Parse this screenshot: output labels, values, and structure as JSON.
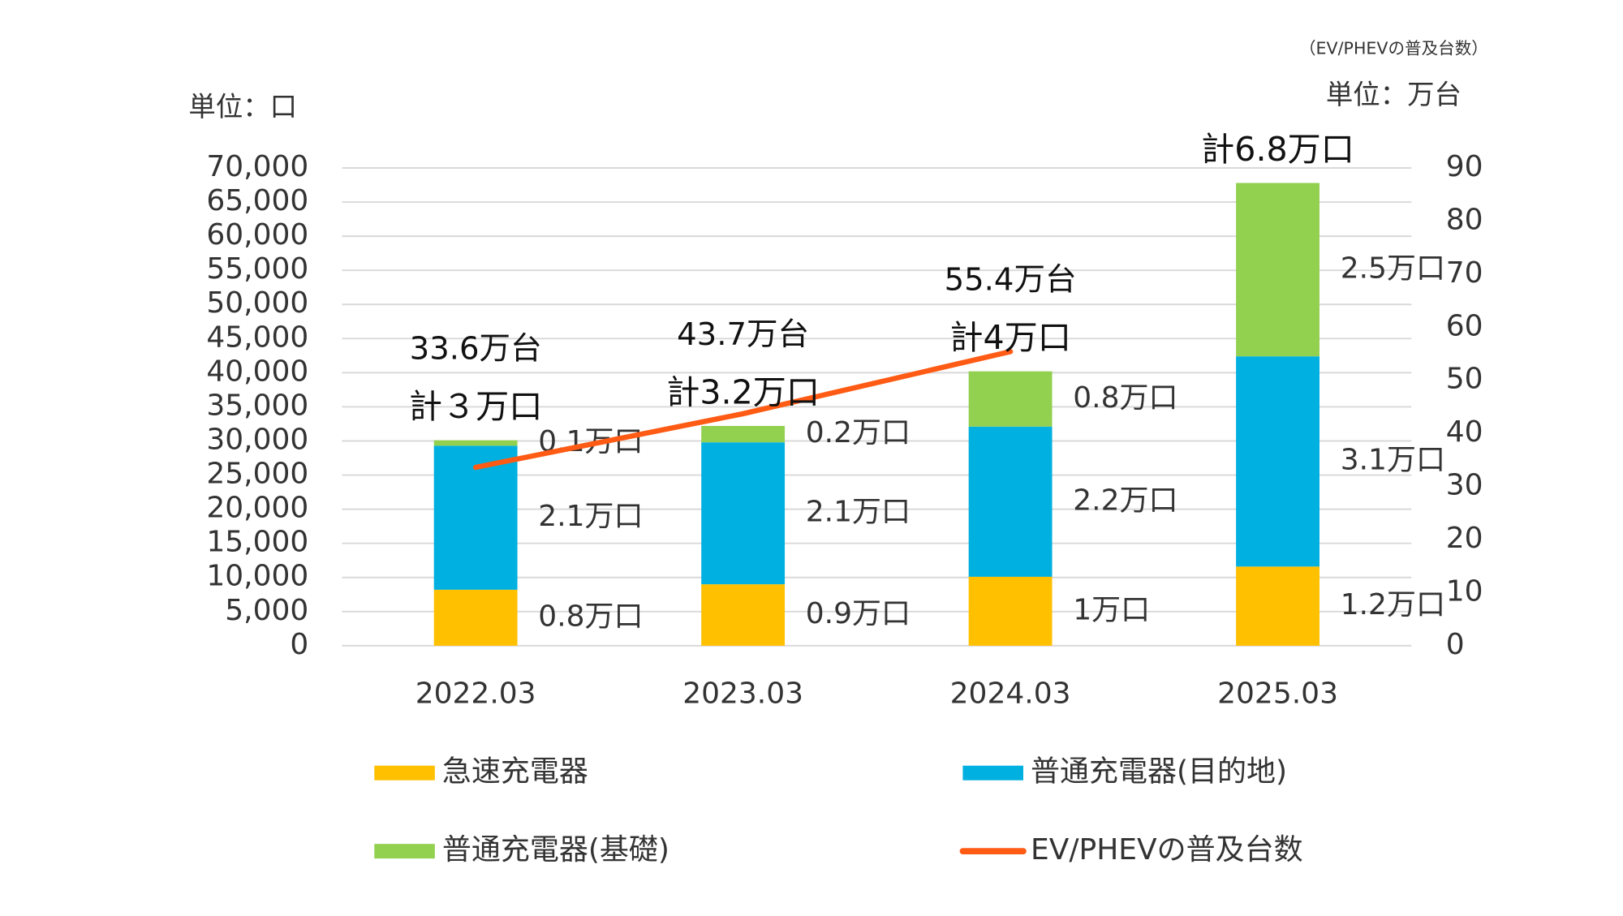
{
  "chart_data": {
    "type": "bar",
    "stacked": true,
    "y_unit_label": "単位：口",
    "y2_note": "（EV/PHEVの普及台数）",
    "y2_unit_label": "単位：万台",
    "categories": [
      "2022.03",
      "2023.03",
      "2024.03",
      "2025.03"
    ],
    "series": [
      {
        "name": "急速充電器",
        "color": "#FFC000",
        "values": [
          8200,
          9000,
          10100,
          11600
        ],
        "value_labels": [
          "0.8万口",
          "0.9万口",
          "1万口",
          "1.2万口"
        ]
      },
      {
        "name": "普通充電器(目的地)",
        "color": "#00B0E0",
        "values": [
          21100,
          20800,
          22000,
          30800
        ],
        "value_labels": [
          "2.1万口",
          "2.1万口",
          "2.2万口",
          "3.1万口"
        ]
      },
      {
        "name": "普通充電器(基礎)",
        "color": "#92D050",
        "values": [
          800,
          2400,
          8100,
          25400
        ],
        "value_labels": [
          "0.1万口",
          "0.2万口",
          "0.8万口",
          "2.5万口"
        ]
      },
      {
        "name": "EV/PHEVの普及台数",
        "type": "line",
        "axis": "y2",
        "color": "#FF5B14",
        "values": [
          33.6,
          43.7,
          55.4,
          null
        ],
        "value_labels": [
          "33.6万台",
          "43.7万台",
          "55.4万台",
          null
        ]
      }
    ],
    "total_labels": [
      "計３万口",
      "計3.2万口",
      "計4万口",
      "計6.8万口"
    ],
    "ylim": [
      0,
      70000
    ],
    "yticks": [
      0,
      {
        "value": 5000,
        "label": "5,000"
      },
      {
        "value": 10000,
        "label": "10,000"
      },
      {
        "value": 15000,
        "label": "15,000"
      },
      {
        "value": 20000,
        "label": "20,000"
      },
      {
        "value": 25000,
        "label": "25,000"
      },
      {
        "value": 30000,
        "label": "30,000"
      },
      {
        "value": 35000,
        "label": "35,000"
      },
      {
        "value": 40000,
        "label": "40,000"
      },
      {
        "value": 45000,
        "label": "45,000"
      },
      {
        "value": 50000,
        "label": "50,000"
      },
      {
        "value": 55000,
        "label": "55,000"
      },
      {
        "value": 60000,
        "label": "60,000"
      },
      {
        "value": 65000,
        "label": "65,000"
      },
      {
        "value": 70000,
        "label": "70,000"
      }
    ],
    "y2lim": [
      0,
      90
    ],
    "y2ticks": [
      0,
      10,
      20,
      30,
      40,
      50,
      60,
      70,
      80,
      90
    ],
    "grid": true
  }
}
